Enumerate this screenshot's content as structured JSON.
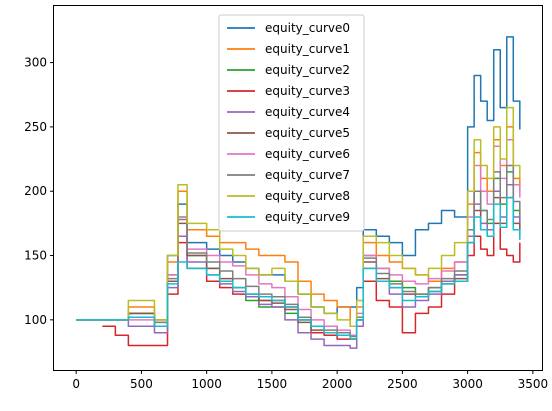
{
  "chart_data": {
    "type": "line",
    "title": "",
    "xlabel": "",
    "ylabel": "",
    "xlim": [
      -170,
      3570
    ],
    "ylim": [
      61,
      344
    ],
    "xticks": [
      0,
      500,
      1000,
      1500,
      2000,
      2500,
      3000,
      3500
    ],
    "xtick_labels": [
      "0",
      "500",
      "1000",
      "1500",
      "2000",
      "2500",
      "3000",
      "3500"
    ],
    "yticks": [
      100,
      150,
      200,
      250,
      300
    ],
    "ytick_labels": [
      "100",
      "150",
      "200",
      "250",
      "300"
    ],
    "grid": false,
    "legend_position": "top-center",
    "series": [
      {
        "name": "equity_curve0",
        "color": "#1f77b4",
        "x": [
          0,
          300,
          400,
          600,
          700,
          780,
          850,
          1000,
          1100,
          1200,
          1300,
          1400,
          1500,
          1600,
          1700,
          1800,
          1900,
          2000,
          2100,
          2150,
          2200,
          2300,
          2400,
          2500,
          2600,
          2700,
          2800,
          2900,
          3000,
          3050,
          3100,
          3150,
          3200,
          3250,
          3300,
          3350,
          3400
        ],
        "values": [
          100,
          100,
          105,
          100,
          150,
          190,
          160,
          155,
          150,
          145,
          140,
          135,
          135,
          130,
          120,
          110,
          105,
          110,
          110,
          125,
          170,
          165,
          160,
          150,
          170,
          175,
          185,
          180,
          250,
          290,
          270,
          255,
          310,
          265,
          320,
          270,
          248
        ]
      },
      {
        "name": "equity_curve1",
        "color": "#ff7f0e",
        "x": [
          0,
          300,
          400,
          600,
          700,
          780,
          850,
          1000,
          1100,
          1200,
          1300,
          1400,
          1500,
          1600,
          1700,
          1800,
          1900,
          2000,
          2100,
          2150,
          2200,
          2300,
          2400,
          2500,
          2600,
          2700,
          2800,
          2900,
          3000,
          3050,
          3100,
          3150,
          3200,
          3250,
          3300,
          3350,
          3400
        ],
        "values": [
          100,
          100,
          110,
          100,
          145,
          200,
          170,
          165,
          160,
          160,
          155,
          150,
          150,
          145,
          130,
          120,
          115,
          110,
          95,
          110,
          160,
          150,
          145,
          140,
          135,
          130,
          140,
          145,
          190,
          230,
          210,
          200,
          240,
          220,
          250,
          210,
          200
        ]
      },
      {
        "name": "equity_curve2",
        "color": "#2ca02c",
        "x": [
          0,
          300,
          400,
          600,
          700,
          780,
          850,
          1000,
          1100,
          1200,
          1300,
          1400,
          1500,
          1600,
          1700,
          1800,
          1900,
          2000,
          2100,
          2150,
          2200,
          2300,
          2400,
          2500,
          2600,
          2700,
          2800,
          2900,
          3000,
          3050,
          3100,
          3150,
          3200,
          3250,
          3300,
          3350,
          3400
        ],
        "values": [
          100,
          100,
          105,
          95,
          135,
          180,
          150,
          140,
          130,
          125,
          115,
          110,
          110,
          105,
          100,
          95,
          95,
          90,
          85,
          100,
          150,
          140,
          130,
          125,
          120,
          125,
          130,
          135,
          170,
          200,
          185,
          175,
          210,
          190,
          215,
          185,
          175
        ]
      },
      {
        "name": "equity_curve3",
        "color": "#d62728",
        "x": [
          200,
          300,
          400,
          600,
          700,
          780,
          850,
          1000,
          1100,
          1200,
          1300,
          1400,
          1500,
          1600,
          1700,
          1800,
          1900,
          2000,
          2100,
          2150,
          2200,
          2300,
          2400,
          2500,
          2600,
          2700,
          2800,
          2900,
          3000,
          3050,
          3100,
          3150,
          3200,
          3250,
          3300,
          3350,
          3400
        ],
        "values": [
          95,
          88,
          80,
          80,
          120,
          160,
          140,
          130,
          125,
          120,
          118,
          115,
          115,
          110,
          100,
          90,
          88,
          85,
          85,
          100,
          130,
          115,
          110,
          90,
          105,
          110,
          120,
          130,
          150,
          165,
          155,
          150,
          175,
          155,
          150,
          145,
          160
        ]
      },
      {
        "name": "equity_curve4",
        "color": "#9467bd",
        "x": [
          0,
          300,
          400,
          600,
          700,
          780,
          850,
          1000,
          1100,
          1200,
          1300,
          1400,
          1500,
          1600,
          1700,
          1800,
          1900,
          2000,
          2100,
          2150,
          2200,
          2300,
          2400,
          2500,
          2600,
          2700,
          2800,
          2900,
          3000,
          3050,
          3100,
          3150,
          3200,
          3250,
          3300,
          3350,
          3400
        ],
        "values": [
          100,
          100,
          95,
          90,
          125,
          165,
          145,
          135,
          128,
          122,
          118,
          112,
          110,
          100,
          90,
          85,
          80,
          80,
          78,
          95,
          140,
          130,
          120,
          110,
          115,
          120,
          130,
          135,
          165,
          190,
          175,
          170,
          200,
          180,
          205,
          180,
          170
        ]
      },
      {
        "name": "equity_curve5",
        "color": "#8c564b",
        "x": [
          0,
          300,
          400,
          600,
          700,
          780,
          850,
          1000,
          1100,
          1200,
          1300,
          1400,
          1500,
          1600,
          1700,
          1800,
          1900,
          2000,
          2100,
          2150,
          2200,
          2300,
          2400,
          2500,
          2600,
          2700,
          2800,
          2900,
          3000,
          3050,
          3100,
          3150,
          3200,
          3250,
          3300,
          3350,
          3400
        ],
        "values": [
          100,
          100,
          105,
          95,
          130,
          175,
          150,
          140,
          132,
          125,
          120,
          115,
          113,
          108,
          98,
          92,
          90,
          88,
          85,
          100,
          145,
          132,
          125,
          120,
          118,
          122,
          128,
          132,
          160,
          185,
          170,
          165,
          195,
          175,
          195,
          175,
          165
        ]
      },
      {
        "name": "equity_curve6",
        "color": "#e377c2",
        "x": [
          0,
          300,
          400,
          600,
          700,
          780,
          850,
          1000,
          1100,
          1200,
          1300,
          1400,
          1500,
          1600,
          1700,
          1800,
          1900,
          2000,
          2100,
          2150,
          2200,
          2300,
          2400,
          2500,
          2600,
          2700,
          2800,
          2900,
          3000,
          3050,
          3100,
          3150,
          3200,
          3250,
          3300,
          3350,
          3400
        ],
        "values": [
          100,
          100,
          100,
          98,
          135,
          180,
          155,
          150,
          145,
          142,
          135,
          128,
          125,
          118,
          108,
          100,
          95,
          92,
          88,
          105,
          150,
          140,
          135,
          130,
          128,
          132,
          138,
          145,
          180,
          220,
          200,
          190,
          235,
          210,
          240,
          205,
          195
        ]
      },
      {
        "name": "equity_curve7",
        "color": "#7f7f7f",
        "x": [
          0,
          300,
          400,
          600,
          700,
          780,
          850,
          1000,
          1100,
          1200,
          1300,
          1400,
          1500,
          1600,
          1700,
          1800,
          1900,
          2000,
          2100,
          2150,
          2200,
          2300,
          2400,
          2500,
          2600,
          2700,
          2800,
          2900,
          3000,
          3050,
          3100,
          3150,
          3200,
          3250,
          3300,
          3350,
          3400
        ],
        "values": [
          100,
          100,
          102,
          98,
          132,
          178,
          152,
          145,
          138,
          132,
          126,
          120,
          118,
          112,
          102,
          95,
          92,
          90,
          87,
          102,
          148,
          136,
          128,
          122,
          120,
          125,
          132,
          138,
          170,
          200,
          185,
          178,
          215,
          195,
          220,
          192,
          180
        ]
      },
      {
        "name": "equity_curve8",
        "color": "#bcbd22",
        "x": [
          0,
          300,
          400,
          600,
          700,
          780,
          850,
          1000,
          1100,
          1200,
          1300,
          1400,
          1500,
          1600,
          1700,
          1800,
          1900,
          2000,
          2100,
          2150,
          2200,
          2300,
          2400,
          2500,
          2600,
          2700,
          2800,
          2900,
          3000,
          3050,
          3100,
          3150,
          3200,
          3250,
          3300,
          3350,
          3400
        ],
        "values": [
          100,
          100,
          115,
          100,
          150,
          205,
          175,
          170,
          155,
          150,
          140,
          135,
          140,
          130,
          120,
          110,
          105,
          100,
          95,
          115,
          165,
          160,
          150,
          140,
          135,
          140,
          150,
          160,
          200,
          240,
          220,
          210,
          250,
          225,
          265,
          220,
          210
        ]
      },
      {
        "name": "equity_curve9",
        "color": "#17becf",
        "x": [
          0,
          300,
          400,
          600,
          700,
          780,
          850,
          1000,
          1100,
          1200,
          1300,
          1400,
          1500,
          1600,
          1700,
          1800,
          1900,
          2000,
          2100,
          2150,
          2200,
          2300,
          2400,
          2500,
          2600,
          2700,
          2800,
          2900,
          3000,
          3050,
          3100,
          3150,
          3200,
          3250,
          3300,
          3350,
          3400
        ],
        "values": [
          100,
          100,
          102,
          95,
          128,
          145,
          140,
          135,
          130,
          125,
          120,
          118,
          115,
          110,
          100,
          95,
          90,
          88,
          85,
          100,
          140,
          130,
          125,
          115,
          118,
          122,
          128,
          130,
          160,
          180,
          170,
          165,
          190,
          172,
          195,
          170,
          162
        ]
      }
    ]
  }
}
